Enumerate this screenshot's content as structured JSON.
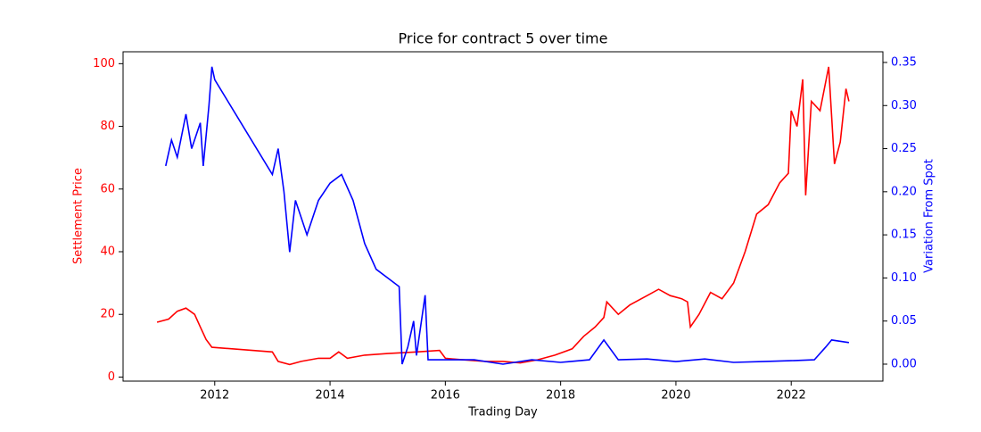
{
  "chart_data": {
    "type": "line",
    "title": "Price for contract 5 over time",
    "xlabel": "Trading Day",
    "ylabel": "Settlement Price",
    "y2label": "Variation From Spot",
    "xlim": [
      2010.41,
      2023.59
    ],
    "xticks": [
      2012,
      2014,
      2016,
      2018,
      2020,
      2022
    ],
    "ylim": [
      -1.3,
      103.8
    ],
    "yticks": [
      0,
      20,
      40,
      60,
      80,
      100
    ],
    "y2lim": [
      -0.0197,
      0.3624
    ],
    "y2ticks": [
      {
        "value": 0,
        "label": "0.00"
      },
      {
        "value": 0.05,
        "label": "0.05"
      },
      {
        "value": 0.1,
        "label": "0.10"
      },
      {
        "value": 0.15,
        "label": "0.15"
      },
      {
        "value": 0.2,
        "label": "0.20"
      },
      {
        "value": 0.25,
        "label": "0.25"
      },
      {
        "value": 0.3,
        "label": "0.30"
      },
      {
        "value": 0.35,
        "label": "0.35"
      }
    ],
    "series": [
      {
        "color": "#ff0000",
        "x": [
          2011.0,
          2011.2,
          2011.35,
          2011.5,
          2011.65,
          2011.75,
          2011.85,
          2011.95,
          2013.0,
          2013.1,
          2013.3,
          2013.5,
          2013.8,
          2014.0,
          2014.15,
          2014.3,
          2014.6,
          2015.0,
          2015.5,
          2015.9,
          2016.0,
          2016.3,
          2016.7,
          2017.0,
          2017.3,
          2017.6,
          2017.9,
          2018.2,
          2018.4,
          2018.6,
          2018.75,
          2018.8,
          2019.0,
          2019.2,
          2019.5,
          2019.7,
          2019.9,
          2020.1,
          2020.2,
          2020.25,
          2020.4,
          2020.6,
          2020.8,
          2021.0,
          2021.2,
          2021.4,
          2021.6,
          2021.8,
          2021.95,
          2022.0,
          2022.1,
          2022.2,
          2022.25,
          2022.35,
          2022.5,
          2022.65,
          2022.75,
          2022.85,
          2022.95,
          2023.0
        ],
        "values": [
          17.5,
          18.5,
          21,
          22,
          20,
          16,
          12,
          9.5,
          8,
          5,
          4,
          5,
          6,
          6,
          8,
          6,
          7,
          7.5,
          8,
          8.5,
          6,
          5.5,
          5,
          5,
          4.5,
          5.5,
          7,
          9,
          13,
          16,
          19,
          24,
          20,
          23,
          26,
          28,
          26,
          25,
          24,
          16,
          20,
          27,
          25,
          30,
          40,
          52,
          55,
          62,
          65,
          85,
          80,
          95,
          58,
          88,
          85,
          99,
          68,
          75,
          92,
          88
        ]
      },
      {
        "color": "#0000ff",
        "axis": "y2",
        "x": [
          2011.15,
          2011.25,
          2011.35,
          2011.5,
          2011.6,
          2011.75,
          2011.8,
          2011.9,
          2011.95,
          2012.0,
          2013.0,
          2013.1,
          2013.2,
          2013.3,
          2013.4,
          2013.6,
          2013.8,
          2014.0,
          2014.2,
          2014.4,
          2014.6,
          2014.8,
          2015.0,
          2015.2,
          2015.25,
          2015.35,
          2015.45,
          2015.5,
          2015.65,
          2015.7,
          2016.0,
          2016.5,
          2017.0,
          2017.5,
          2018.0,
          2018.5,
          2018.75,
          2019.0,
          2019.5,
          2020.0,
          2020.5,
          2021.0,
          2021.5,
          2022.0,
          2022.4,
          2022.6,
          2022.7,
          2023.0
        ],
        "values": [
          0.23,
          0.26,
          0.24,
          0.29,
          0.25,
          0.28,
          0.23,
          0.3,
          0.345,
          0.33,
          0.22,
          0.25,
          0.2,
          0.13,
          0.19,
          0.15,
          0.19,
          0.21,
          0.22,
          0.19,
          0.14,
          0.11,
          0.1,
          0.09,
          0.0,
          0.02,
          0.05,
          0.01,
          0.08,
          0.005,
          0.005,
          0.005,
          0.0,
          0.005,
          0.002,
          0.005,
          0.028,
          0.005,
          0.006,
          0.003,
          0.006,
          0.002,
          0.003,
          0.004,
          0.005,
          0.02,
          0.028,
          0.025
        ]
      }
    ]
  }
}
